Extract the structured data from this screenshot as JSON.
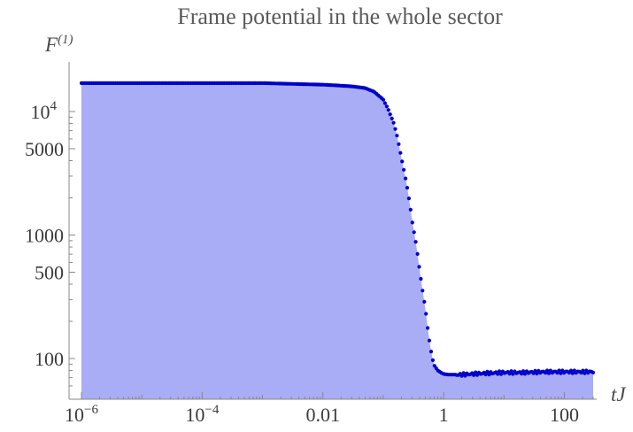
{
  "chart_data": {
    "type": "area",
    "title": "Frame potential in the whole sector",
    "xlabel": "tJ",
    "ylabel": {
      "base": "F",
      "sup": "(1)"
    },
    "x_scale": "log",
    "y_scale": "log",
    "xlim": [
      7e-07,
      1000
    ],
    "ylim": [
      58,
      18000
    ],
    "x_ticks": [
      {
        "value": 1e-06,
        "label": "10",
        "sup": "−6"
      },
      {
        "value": 0.0001,
        "label": "10",
        "sup": "−4"
      },
      {
        "value": 0.01,
        "label": "0.01",
        "sup": ""
      },
      {
        "value": 1,
        "label": "1",
        "sup": ""
      },
      {
        "value": 100,
        "label": "100",
        "sup": ""
      }
    ],
    "y_ticks": [
      {
        "value": 100,
        "label": "100",
        "sup": ""
      },
      {
        "value": 500,
        "label": "500",
        "sup": ""
      },
      {
        "value": 1000,
        "label": "1000",
        "sup": ""
      },
      {
        "value": 5000,
        "label": "5000",
        "sup": ""
      },
      {
        "value": 10000,
        "label": "10",
        "sup": "4"
      }
    ],
    "grid": false,
    "series": [
      {
        "x": [
          1e-06,
          1e-05,
          0.0001,
          0.001,
          0.01,
          0.02,
          0.03,
          0.05,
          0.07,
          0.1,
          0.12,
          0.15,
          0.17,
          0.2,
          0.23,
          0.25,
          0.28,
          0.3,
          0.35,
          0.4,
          0.45,
          0.5,
          0.55,
          0.6,
          0.65,
          0.7,
          0.8,
          0.9,
          1.0,
          1.2,
          1.5,
          2,
          3,
          5,
          10,
          20,
          50,
          100,
          200,
          300
        ],
        "y": [
          17000,
          17000,
          17000,
          17000,
          16500,
          16200,
          16000,
          15500,
          14500,
          12500,
          10500,
          8000,
          6300,
          4200,
          3000,
          2400,
          1700,
          1300,
          850,
          520,
          350,
          250,
          170,
          125,
          100,
          88,
          80,
          77,
          75,
          74,
          74,
          74,
          75,
          76,
          77,
          77,
          78,
          78,
          78,
          78
        ],
        "color": "#0000cc",
        "fill_color": "#a9adf5"
      }
    ]
  }
}
